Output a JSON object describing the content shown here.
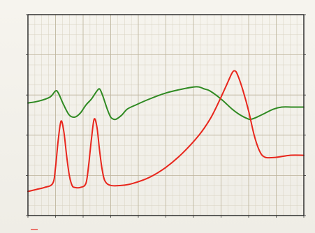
{
  "header": {
    "left_label": "",
    "center_label": "",
    "right_label": ""
  },
  "chart_data": {
    "type": "line",
    "title": "",
    "xlabel": "",
    "ylabel": "",
    "xlim": [
      0,
      100
    ],
    "ylim": [
      0,
      100
    ],
    "grid": true,
    "legend": "bottom-left",
    "x_ticks": [
      0,
      10,
      20,
      30,
      40,
      50,
      60,
      70,
      80,
      90,
      100
    ],
    "y_ticks": [
      0,
      20,
      40,
      60,
      80,
      100
    ],
    "series": [
      {
        "name": "",
        "color": "#2f8a22",
        "points": [
          [
            0,
            56
          ],
          [
            4,
            57
          ],
          [
            8,
            59
          ],
          [
            10,
            62
          ],
          [
            11,
            61
          ],
          [
            13,
            55
          ],
          [
            15,
            50
          ],
          [
            17,
            49
          ],
          [
            19,
            51
          ],
          [
            21,
            55
          ],
          [
            23,
            58
          ],
          [
            25,
            62
          ],
          [
            26,
            63
          ],
          [
            27,
            60
          ],
          [
            28,
            56
          ],
          [
            29,
            52
          ],
          [
            30,
            49
          ],
          [
            31,
            48
          ],
          [
            32,
            48
          ],
          [
            34,
            50
          ],
          [
            36,
            53
          ],
          [
            39,
            55
          ],
          [
            44,
            58
          ],
          [
            50,
            61
          ],
          [
            56,
            63
          ],
          [
            60,
            64
          ],
          [
            62,
            64
          ],
          [
            64,
            63
          ],
          [
            66,
            62
          ],
          [
            70,
            58
          ],
          [
            74,
            53
          ],
          [
            77,
            50
          ],
          [
            80,
            48
          ],
          [
            81,
            48
          ],
          [
            83,
            49
          ],
          [
            86,
            51
          ],
          [
            89,
            53
          ],
          [
            92,
            54
          ],
          [
            96,
            54
          ],
          [
            100,
            54
          ]
        ]
      },
      {
        "name": "",
        "color": "#e8261c",
        "points": [
          [
            0,
            12
          ],
          [
            3,
            13
          ],
          [
            6,
            14
          ],
          [
            9,
            16
          ],
          [
            10,
            24
          ],
          [
            11,
            38
          ],
          [
            12,
            47
          ],
          [
            13,
            42
          ],
          [
            14,
            30
          ],
          [
            15,
            20
          ],
          [
            16,
            15
          ],
          [
            17,
            14
          ],
          [
            19,
            14
          ],
          [
            21,
            16
          ],
          [
            22,
            25
          ],
          [
            23,
            38
          ],
          [
            24,
            48
          ],
          [
            25,
            44
          ],
          [
            26,
            32
          ],
          [
            27,
            22
          ],
          [
            28,
            17
          ],
          [
            30,
            15
          ],
          [
            34,
            15
          ],
          [
            38,
            16
          ],
          [
            44,
            19
          ],
          [
            50,
            24
          ],
          [
            56,
            31
          ],
          [
            62,
            40
          ],
          [
            66,
            48
          ],
          [
            69,
            56
          ],
          [
            72,
            65
          ],
          [
            74,
            71
          ],
          [
            75,
            72
          ],
          [
            76,
            70
          ],
          [
            78,
            62
          ],
          [
            80,
            52
          ],
          [
            82,
            40
          ],
          [
            84,
            32
          ],
          [
            86,
            29
          ],
          [
            90,
            29
          ],
          [
            95,
            30
          ],
          [
            100,
            30
          ]
        ]
      }
    ]
  }
}
